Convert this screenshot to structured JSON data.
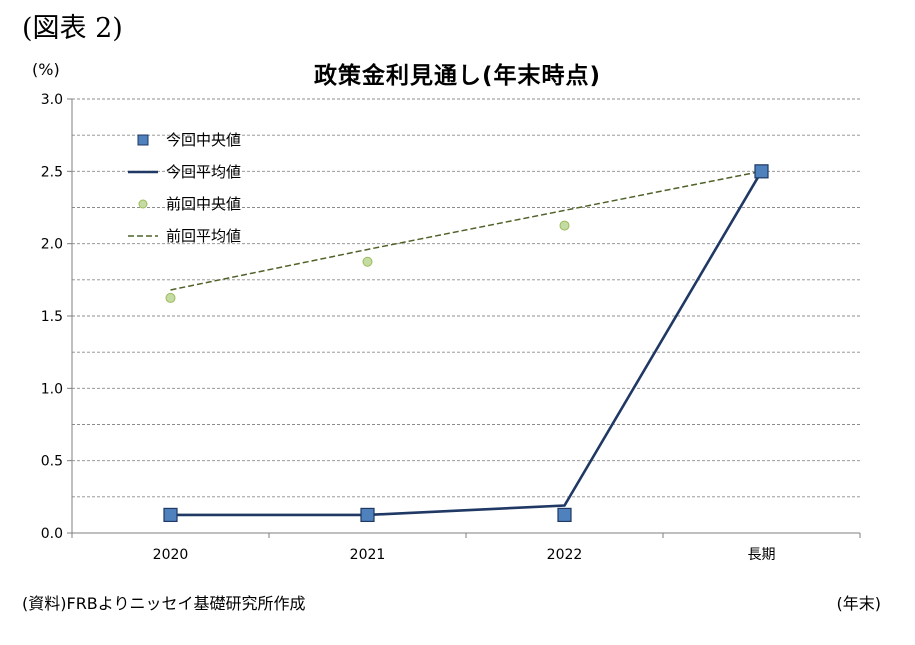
{
  "figure_label": "(図表 2)",
  "unit_label": "(%)",
  "source_note": "(資料)FRBよりニッセイ基礎研究所作成",
  "x_unit_note": "(年末)",
  "colors": {
    "current_median": "#4f81bd",
    "current_average": "#1f3864",
    "previous_median": "#c5dba4",
    "previous_average": "#4f6228"
  },
  "chart_data": {
    "type": "line",
    "title": "政策金利見通し(年末時点)",
    "xlabel": "",
    "ylabel": "(%)",
    "categories": [
      "2020",
      "2021",
      "2022",
      "長期"
    ],
    "ylim": [
      0,
      3.0
    ],
    "yticks": [
      "0.0",
      "0.5",
      "1.0",
      "1.5",
      "2.0",
      "2.5",
      "3.0"
    ],
    "grid": true,
    "legend_position": "top-left",
    "series": [
      {
        "name": "今回中央値",
        "style": "square-marker",
        "values": [
          0.125,
          0.125,
          0.125,
          2.5
        ]
      },
      {
        "name": "今回平均値",
        "style": "solid-line",
        "values": [
          0.125,
          0.125,
          0.19,
          2.5
        ]
      },
      {
        "name": "前回中央値",
        "style": "circle-marker",
        "values": [
          1.625,
          1.875,
          2.125,
          2.5
        ]
      },
      {
        "name": "前回平均値",
        "style": "dashed-line",
        "values": [
          1.68,
          1.96,
          2.23,
          2.5
        ]
      }
    ]
  }
}
